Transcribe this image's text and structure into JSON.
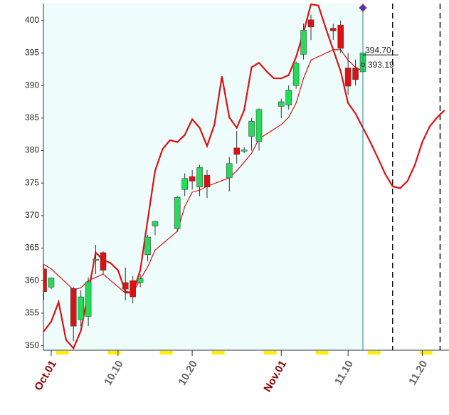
{
  "chart_data": {
    "type": "candlestick",
    "xlim": [
      -1.05,
      53.6
    ],
    "ylim": [
      349.3,
      402.6
    ],
    "yticks": [
      350,
      355,
      360,
      365,
      370,
      375,
      380,
      385,
      390,
      395,
      400
    ],
    "xticks": [
      {
        "value": 0,
        "label": "Oct.01"
      },
      {
        "value": 9,
        "label": "10.10"
      },
      {
        "value": 19,
        "label": "10.20"
      },
      {
        "value": 31,
        "label": "Nov.01"
      },
      {
        "value": 40,
        "label": "11.10"
      },
      {
        "value": 50,
        "label": "11.20"
      }
    ],
    "month_tick_color": "#8b0000",
    "tick_color": "#666666",
    "background": "#effcfc",
    "candles": {
      "up_color": "#22dd55",
      "down_color": "#dd1111",
      "x": [
        -1,
        0,
        3,
        4,
        5,
        6,
        7,
        10,
        11,
        12,
        13,
        14,
        17,
        18,
        19,
        20,
        21,
        24,
        25,
        26,
        27,
        28,
        31,
        32,
        33,
        34,
        35,
        38,
        39,
        40,
        41,
        42
      ],
      "open": [
        361.8,
        359,
        358.8,
        354,
        354.5,
        363.1,
        364.3,
        359.7,
        360,
        359.7,
        364,
        368.4,
        368,
        374,
        376,
        374.4,
        376.2,
        375.8,
        380.4,
        379.9,
        382.2,
        381.4,
        386.8,
        387,
        390,
        394.8,
        400.1,
        398.8,
        399.3,
        392.7,
        392.7,
        392.1
      ],
      "high": [
        362.5,
        360.5,
        359,
        358.5,
        360.5,
        365.5,
        364.5,
        362,
        360.7,
        361,
        367,
        369.2,
        373,
        376.5,
        377,
        377.8,
        377,
        379,
        383,
        380.5,
        385,
        386.5,
        388,
        390,
        393.7,
        399.5,
        400.9,
        399.5,
        400,
        395,
        394,
        395.5
      ],
      "low": [
        357,
        358.7,
        350.7,
        353,
        353,
        361,
        361,
        357,
        356.5,
        359,
        363,
        367,
        367.5,
        373,
        374,
        373,
        372.7,
        373.7,
        378,
        379.6,
        380,
        380,
        385,
        386.3,
        389.5,
        394,
        397,
        397,
        395,
        388.6,
        390,
        391
      ],
      "close": [
        358.3,
        360.4,
        353,
        357.5,
        359.8,
        363.3,
        361.6,
        358.7,
        357.5,
        360.3,
        366.7,
        369.1,
        372.8,
        375.7,
        375.3,
        377.4,
        374.4,
        378,
        379.4,
        380.1,
        384.5,
        386.3,
        387.5,
        389.3,
        393.4,
        398.5,
        399,
        398.4,
        395.7,
        389.9,
        390.9,
        395
      ]
    },
    "lines": [
      {
        "color": "#dd1111",
        "width": 1.2,
        "x": [
          -1,
          0,
          3,
          4,
          5,
          6,
          7,
          10,
          11,
          12,
          13,
          14,
          17,
          18,
          19,
          20,
          21,
          24,
          25,
          26,
          27,
          28,
          31,
          32,
          33,
          34,
          35,
          38,
          39,
          40,
          41,
          42
        ],
        "values": [
          362.5,
          361.8,
          358.6,
          358.9,
          360,
          360.5,
          361,
          358.1,
          358.1,
          360.2,
          362.1,
          364.7,
          367.6,
          371.4,
          373.6,
          373.9,
          374.5,
          375.8,
          376.9,
          378.2,
          379.6,
          381.8,
          384,
          385.1,
          387.3,
          391.1,
          393.9,
          395.5,
          395.5,
          393.9,
          392.8,
          392.2
        ]
      },
      {
        "color": "#dd1111",
        "width": 2.2,
        "x": [
          -1,
          0,
          1,
          2,
          3,
          4,
          5,
          6,
          7,
          8,
          9,
          10,
          11,
          12,
          13,
          14,
          15,
          16,
          17,
          18,
          19,
          20,
          21,
          22,
          23,
          24,
          25,
          26,
          27,
          28,
          29,
          30,
          31,
          32,
          33,
          34,
          35,
          36,
          37,
          38,
          39,
          40,
          41,
          42,
          43,
          44,
          45,
          46,
          47,
          48,
          49,
          50,
          51,
          52,
          53
        ],
        "values": [
          352.2,
          353.7,
          356.7,
          350.9,
          349.6,
          352.3,
          358.3,
          364.3,
          363.2,
          362.7,
          361.6,
          358.3,
          358.1,
          361.6,
          369.3,
          376.9,
          380.2,
          381.6,
          381.3,
          382.4,
          384.8,
          383.5,
          380.7,
          384,
          391.4,
          385.1,
          383.5,
          386.2,
          392.8,
          393.5,
          392.2,
          391.1,
          391.1,
          391.6,
          394.4,
          398.2,
          402.5,
          402.3,
          398.8,
          395.5,
          392.2,
          387.3,
          385.7,
          383.5,
          381.3,
          378.9,
          376.4,
          374.5,
          374.2,
          375.3,
          377.8,
          381.3,
          383.7,
          385.1,
          386.2
        ]
      }
    ],
    "cursor": {
      "x": 42,
      "color": "#2a7f8f",
      "marker_color": "#2244cc"
    },
    "annotations": [
      {
        "text": "394.70",
        "value": 394.7
      },
      {
        "text": "393.19",
        "value": 393.19
      }
    ],
    "vlines": [
      46,
      52.4
    ],
    "weekends": [
      1.5,
      8.5,
      15.5,
      22.5,
      29.5,
      36.5,
      43.5,
      50.5
    ],
    "weekend_color": "#ffee00"
  }
}
